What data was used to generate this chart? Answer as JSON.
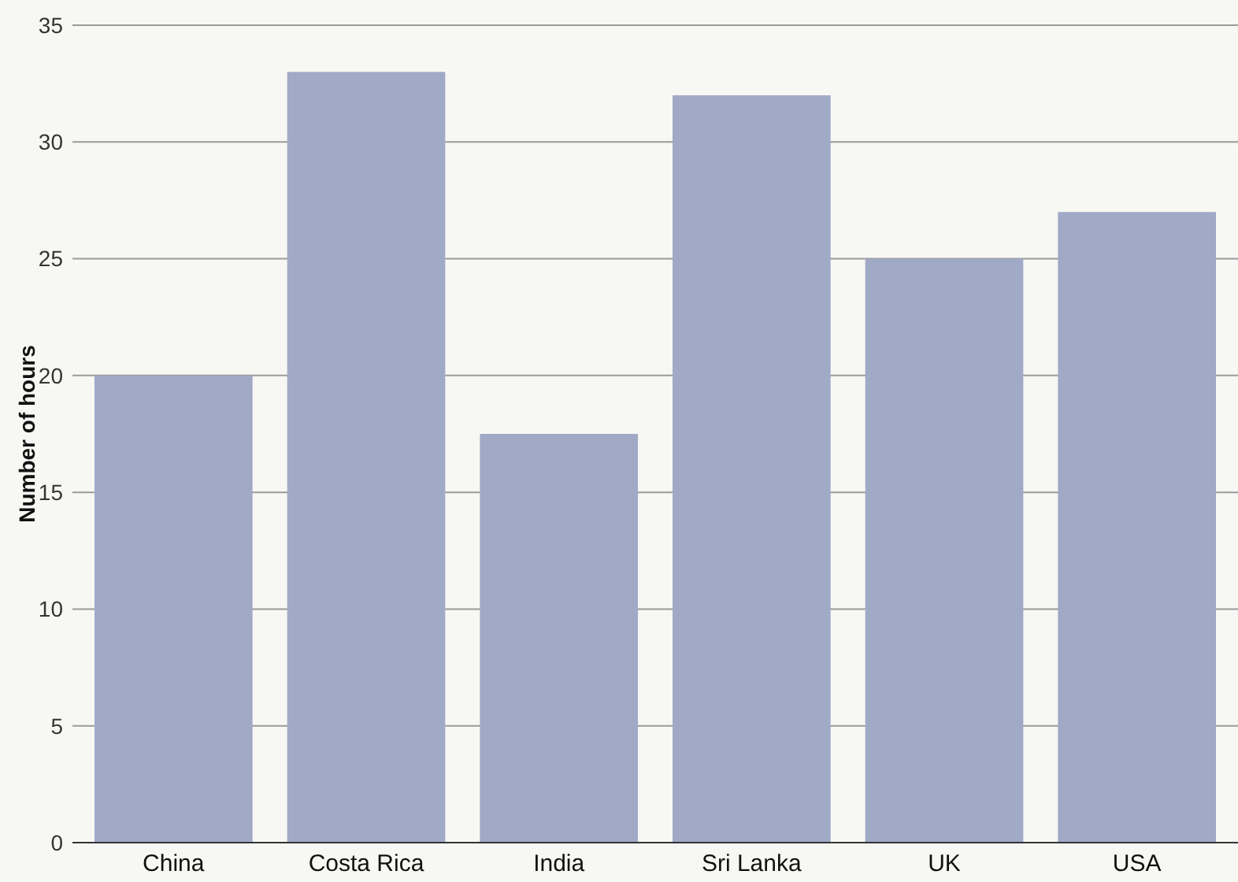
{
  "chart_data": {
    "type": "bar",
    "ylabel": "Number of hours",
    "categories": [
      "China",
      "Costa Rica",
      "India",
      "Sri Lanka",
      "UK",
      "USA"
    ],
    "values": [
      20,
      33,
      17.5,
      32,
      25,
      27
    ],
    "color": "#a0a9c6",
    "ylim": [
      0,
      35
    ],
    "yticks": [
      0,
      5,
      10,
      15,
      20,
      25,
      30,
      35
    ],
    "grid": "y"
  }
}
